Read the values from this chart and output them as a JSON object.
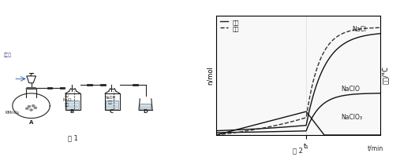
{
  "fig1_label": "图 1",
  "fig2_label": "图 2",
  "graph": {
    "ylabel_left": "n/mol",
    "ylabel_right": "温度/°C",
    "xlabel": "t/min",
    "xtick_label": "t₁",
    "legend_solid": "物质",
    "legend_dashed": "温度",
    "curve_NaCl_label": "NaCl",
    "curve_NaClO_label": "NaClO",
    "curve_NaClO3_label": "NaClO₃",
    "bg_color": "#f5f5f5",
    "line_color": "#222222"
  }
}
